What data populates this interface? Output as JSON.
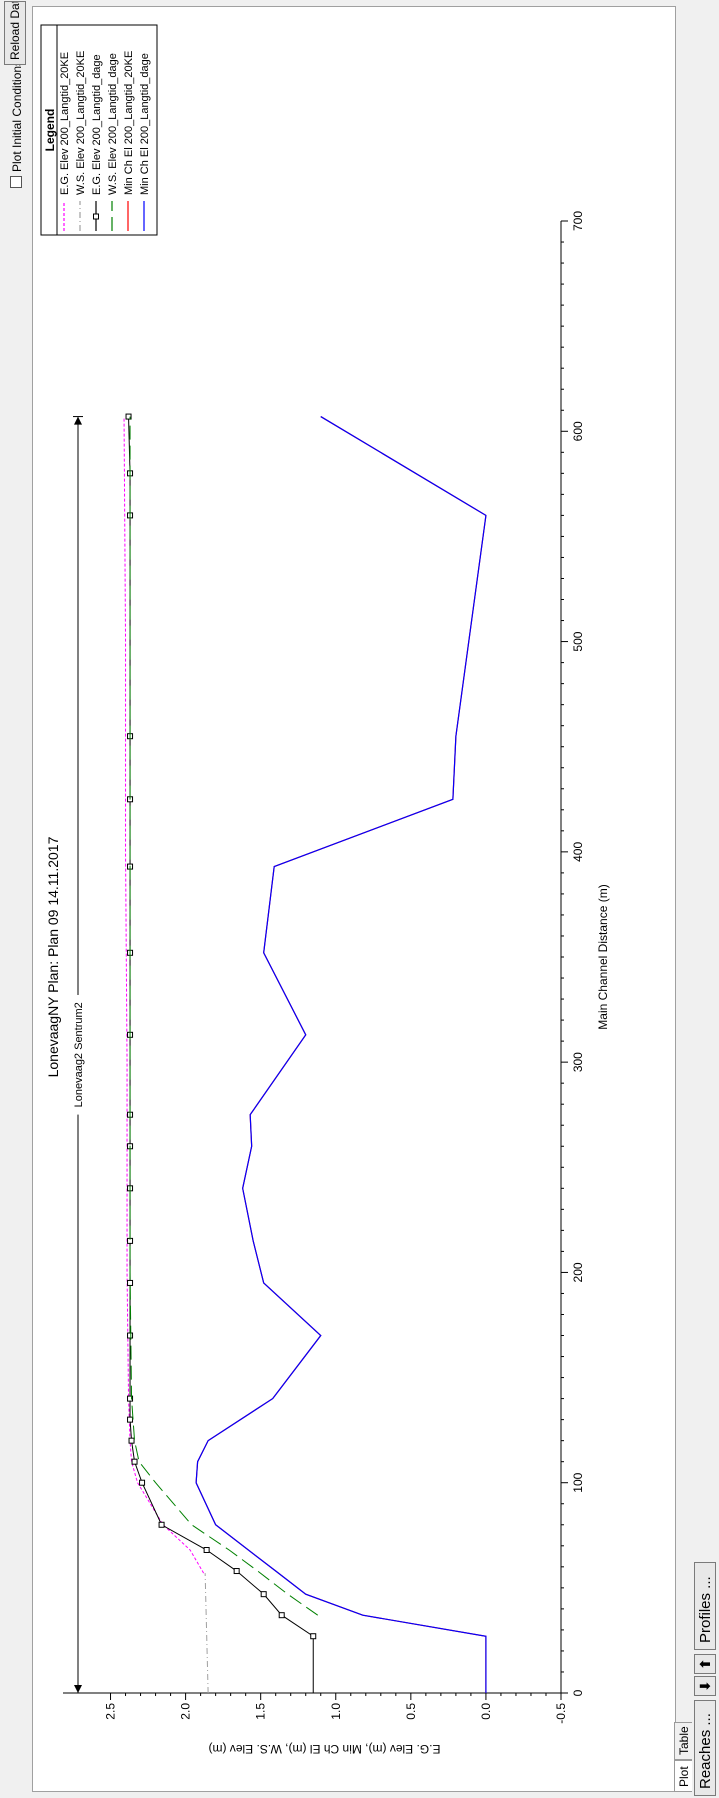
{
  "toolbar": {
    "reaches_label": "Reaches ...",
    "profiles_label": "Profiles ...",
    "down_arrow": "⬇",
    "up_arrow": "⬆",
    "plot_initial_conditions_label": "Plot Initial Conditions",
    "plot_initial_conditions_checked": false,
    "reload_label": "Reload Dat"
  },
  "tabs": [
    {
      "label": "Plot",
      "active": true
    },
    {
      "label": "Table",
      "active": false
    }
  ],
  "chart_data": {
    "type": "line",
    "title": "LonevaagNY      Plan: Plan 09    14.11.2017",
    "reach_label": "Lonevaag2 Sentrum2",
    "reach_range": [
      0,
      607
    ],
    "xlabel": "Main Channel Distance (m)",
    "ylabel": "E.G. Elev (m), Min Ch El (m), W.S. Elev (m)",
    "xlim": [
      0,
      700
    ],
    "ylim": [
      -0.5,
      2.65
    ],
    "xticks": [
      0,
      100,
      200,
      300,
      400,
      500,
      600,
      700
    ],
    "yticks": [
      "-0.5",
      "0.0",
      "0.5",
      "1.0",
      "1.5",
      "2.0",
      "2.5"
    ],
    "grid": false,
    "legend": {
      "title": "Legend",
      "placement": "top-right",
      "entries": [
        "E.G. Elev 200_Langtid_20KE",
        "W.S. Elev 200_Langtid_20KE",
        "E.G. Elev 200_Langtid_dage",
        "W.S. Elev 200_Langtid_dage",
        "Min Ch El 200_Langtid_20KE",
        "Min Ch El 200_Langtid_dage"
      ]
    },
    "series": [
      {
        "name": "E.G. Elev 200_Langtid_20KE",
        "color": "#ff00ff",
        "style": "dash",
        "x": [
          57,
          68,
          80,
          100,
          110,
          120,
          140,
          200,
          300,
          400,
          500,
          607
        ],
        "y": [
          1.88,
          1.97,
          2.15,
          2.32,
          2.36,
          2.37,
          2.38,
          2.39,
          2.39,
          2.4,
          2.4,
          2.41
        ]
      },
      {
        "name": "W.S. Elev 200_Langtid_20KE",
        "color": "#a0a0a0",
        "style": "dashdot",
        "x": [
          0,
          57
        ],
        "y": [
          1.85,
          1.87
        ]
      },
      {
        "name": "E.G. Elev 200_Langtid_dage",
        "color": "#000000",
        "style": "solid-markers",
        "x": [
          0,
          27,
          37,
          47,
          58,
          68,
          80,
          100,
          110,
          120,
          130,
          140,
          170,
          195,
          215,
          240,
          260,
          275,
          313,
          352,
          393,
          425,
          455,
          560,
          580,
          607
        ],
        "y": [
          1.15,
          1.15,
          1.36,
          1.48,
          1.66,
          1.86,
          2.16,
          2.29,
          2.34,
          2.36,
          2.37,
          2.37,
          2.37,
          2.37,
          2.37,
          2.37,
          2.37,
          2.37,
          2.37,
          2.37,
          2.37,
          2.37,
          2.37,
          2.37,
          2.37,
          2.38
        ]
      },
      {
        "name": "W.S. Elev 200_Langtid_dage",
        "color": "#008000",
        "style": "longdash",
        "x": [
          37,
          47,
          58,
          68,
          80,
          100,
          110,
          120,
          140,
          200,
          300,
          400,
          500,
          607
        ],
        "y": [
          1.12,
          1.32,
          1.52,
          1.71,
          1.96,
          2.2,
          2.31,
          2.34,
          2.36,
          2.37,
          2.37,
          2.37,
          2.37,
          2.37
        ]
      },
      {
        "name": "Min Ch El 200_Langtid_20KE",
        "color": "#ff0000",
        "style": "solid",
        "x": [
          0,
          27,
          37,
          47,
          58,
          80,
          100,
          110,
          120,
          140,
          170,
          195,
          215,
          240,
          260,
          275,
          313,
          352,
          393,
          425,
          455,
          560,
          607
        ],
        "y": [
          0.0,
          0.0,
          0.82,
          1.2,
          1.4,
          1.8,
          1.93,
          1.92,
          1.85,
          1.42,
          1.1,
          1.48,
          1.55,
          1.62,
          1.56,
          1.57,
          1.2,
          1.48,
          1.41,
          0.22,
          0.2,
          0.0,
          1.1
        ]
      },
      {
        "name": "Min Ch El 200_Langtid_dage",
        "color": "#0000ff",
        "style": "solid",
        "x": [
          0,
          27,
          37,
          47,
          58,
          80,
          100,
          110,
          120,
          140,
          170,
          195,
          215,
          240,
          260,
          275,
          313,
          352,
          393,
          425,
          455,
          560,
          607
        ],
        "y": [
          0.0,
          0.0,
          0.82,
          1.2,
          1.4,
          1.8,
          1.93,
          1.92,
          1.85,
          1.42,
          1.1,
          1.48,
          1.55,
          1.62,
          1.56,
          1.57,
          1.2,
          1.48,
          1.41,
          0.22,
          0.2,
          0.0,
          1.1
        ]
      }
    ]
  }
}
